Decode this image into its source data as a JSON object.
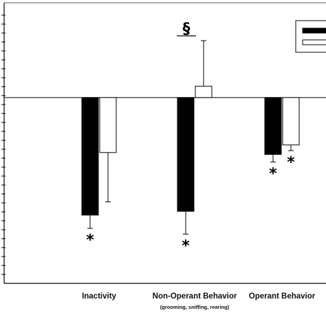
{
  "chart_data": {
    "type": "bar",
    "categories": [
      "Inactivity",
      "Non-Operant Behavior",
      "Operant Behavior"
    ],
    "category_sublabels": [
      "",
      "(grooming, sniffing, rearing)",
      ""
    ],
    "series": [
      {
        "color": "#000000",
        "values": [
          -3.1,
          -3.0,
          -1.5
        ],
        "errors": [
          0.35,
          0.6,
          0.2
        ]
      },
      {
        "color": "#ffffff",
        "values": [
          -1.45,
          0.3,
          -1.25
        ],
        "errors": [
          1.3,
          1.2,
          0.15
        ]
      }
    ],
    "ylim": [
      -4.9,
      2.5
    ],
    "baseline": 0,
    "significance": [
      {
        "category": 0,
        "series": 0,
        "symbol": "*"
      },
      {
        "category": 1,
        "series": 0,
        "symbol": "*"
      },
      {
        "category": 2,
        "series": 0,
        "symbol": "*"
      },
      {
        "category": 2,
        "series": 1,
        "symbol": "*"
      },
      {
        "category": 1,
        "symbol": "§",
        "position": "above"
      }
    ],
    "legend_position": "top-right",
    "grid": false
  }
}
